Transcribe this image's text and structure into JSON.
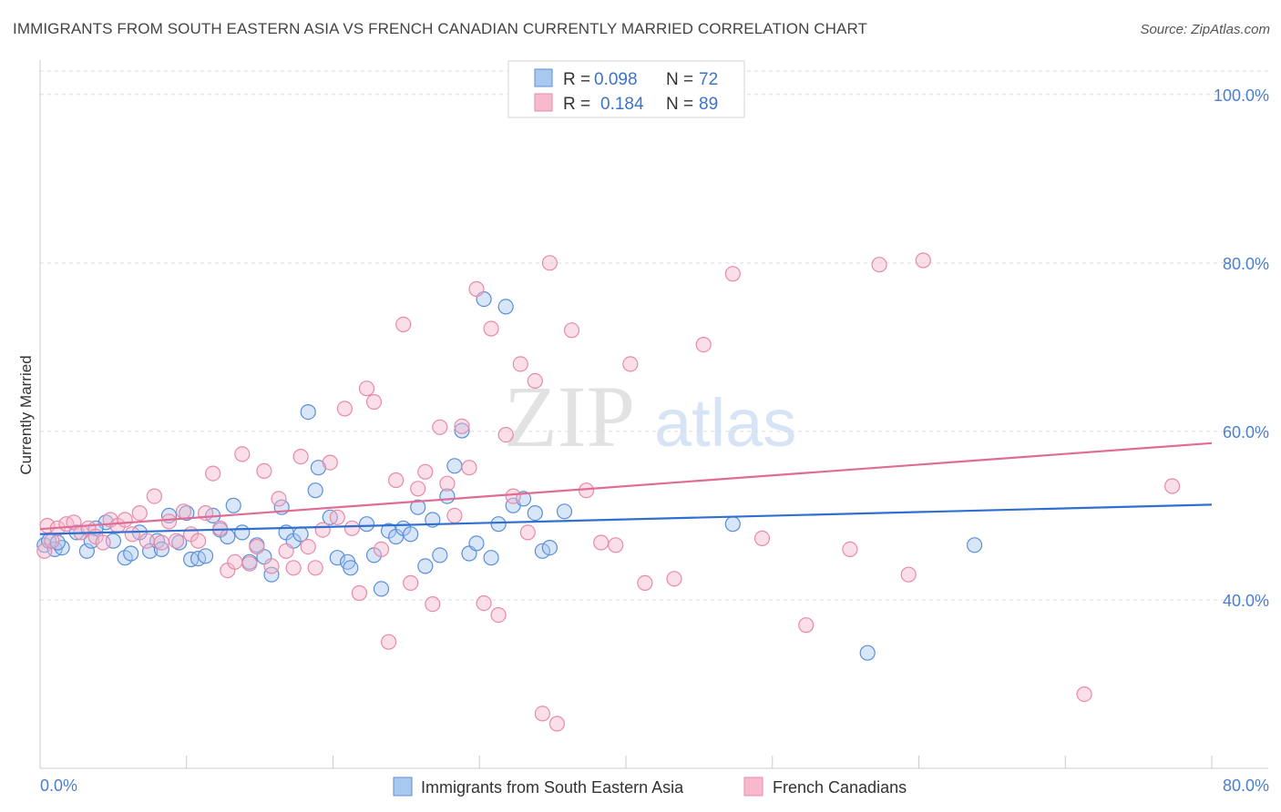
{
  "title": "IMMIGRANTS FROM SOUTH EASTERN ASIA VS FRENCH CANADIAN CURRENTLY MARRIED CORRELATION CHART",
  "source": "Source: ZipAtlas.com",
  "watermark": {
    "part1": "ZIP",
    "part2": "atlas"
  },
  "colors": {
    "blue_fill": "#a9c8f0",
    "blue_stroke": "#5b8fd8",
    "blue_line": "#2e6fd0",
    "pink_fill": "#f7b9cc",
    "pink_stroke": "#e88aa8",
    "pink_line": "#e06c96",
    "tick_text": "#4a7fd0",
    "grid": "#dddddd"
  },
  "chart_data": {
    "type": "scatter",
    "title": "IMMIGRANTS FROM SOUTH EASTERN ASIA VS FRENCH CANADIAN CURRENTLY MARRIED CORRELATION CHART",
    "xlabel": "",
    "ylabel": "Currently Married",
    "xlim": [
      0,
      80
    ],
    "ylim": [
      20,
      103
    ],
    "x_tick_labels": [
      "0.0%",
      "80.0%"
    ],
    "y_ticks": [
      40,
      60,
      80,
      100
    ],
    "y_tick_labels": [
      "40.0%",
      "60.0%",
      "80.0%",
      "100.0%"
    ],
    "grid": true,
    "legend_position": "top-center",
    "stats": [
      {
        "r_label": "R =",
        "r_value": "0.098",
        "n_label": "N =",
        "n_value": "72"
      },
      {
        "r_label": "R =",
        "r_value": "0.184",
        "n_label": "N =",
        "n_value": "89"
      }
    ],
    "series": [
      {
        "name": "Immigrants from South Eastern Asia",
        "color": "blue",
        "trend": [
          [
            0,
            47.8
          ],
          [
            80,
            51.3
          ]
        ],
        "points": [
          [
            0.3,
            46.5
          ],
          [
            0.6,
            47.0
          ],
          [
            1.0,
            46.0
          ],
          [
            1.5,
            46.2
          ],
          [
            2.5,
            48.0
          ],
          [
            3.2,
            45.8
          ],
          [
            3.5,
            47.0
          ],
          [
            4.5,
            49.2
          ],
          [
            5.0,
            47.0
          ],
          [
            5.8,
            45.0
          ],
          [
            6.2,
            45.5
          ],
          [
            6.8,
            48.0
          ],
          [
            7.5,
            45.8
          ],
          [
            8.0,
            47.0
          ],
          [
            8.3,
            46.0
          ],
          [
            8.8,
            50.0
          ],
          [
            9.5,
            46.8
          ],
          [
            10.0,
            50.3
          ],
          [
            10.3,
            44.8
          ],
          [
            10.8,
            44.9
          ],
          [
            11.3,
            45.2
          ],
          [
            11.8,
            50.0
          ],
          [
            12.3,
            48.3
          ],
          [
            12.8,
            47.5
          ],
          [
            13.2,
            51.2
          ],
          [
            13.8,
            48.0
          ],
          [
            14.3,
            44.5
          ],
          [
            14.8,
            46.5
          ],
          [
            15.3,
            45.1
          ],
          [
            15.8,
            43.0
          ],
          [
            16.5,
            51.0
          ],
          [
            16.8,
            48.0
          ],
          [
            17.3,
            47.0
          ],
          [
            17.8,
            47.8
          ],
          [
            18.3,
            62.3
          ],
          [
            18.8,
            53.0
          ],
          [
            19.0,
            55.7
          ],
          [
            19.8,
            49.8
          ],
          [
            20.3,
            45.0
          ],
          [
            21.0,
            44.5
          ],
          [
            21.2,
            43.8
          ],
          [
            22.3,
            49.0
          ],
          [
            22.8,
            45.3
          ],
          [
            23.3,
            41.3
          ],
          [
            23.8,
            48.2
          ],
          [
            24.3,
            47.5
          ],
          [
            24.8,
            48.5
          ],
          [
            25.3,
            47.8
          ],
          [
            25.8,
            51.0
          ],
          [
            26.3,
            44.0
          ],
          [
            26.8,
            49.5
          ],
          [
            27.3,
            45.3
          ],
          [
            27.8,
            52.3
          ],
          [
            28.3,
            55.9
          ],
          [
            28.8,
            60.1
          ],
          [
            29.3,
            45.5
          ],
          [
            29.8,
            46.7
          ],
          [
            30.3,
            75.7
          ],
          [
            30.8,
            45.0
          ],
          [
            31.3,
            49.0
          ],
          [
            31.8,
            74.8
          ],
          [
            32.3,
            51.2
          ],
          [
            33.0,
            52.0
          ],
          [
            33.8,
            50.3
          ],
          [
            34.3,
            45.8
          ],
          [
            34.8,
            46.2
          ],
          [
            35.8,
            50.5
          ],
          [
            47.3,
            49.0
          ],
          [
            56.5,
            33.7
          ],
          [
            63.8,
            46.5
          ],
          [
            1.2,
            46.8
          ],
          [
            3.8,
            48.5
          ]
        ]
      },
      {
        "name": "French Canadians",
        "color": "pink",
        "trend": [
          [
            0,
            48.4
          ],
          [
            80,
            58.6
          ]
        ],
        "points": [
          [
            0.3,
            45.8
          ],
          [
            0.5,
            48.8
          ],
          [
            0.8,
            47.0
          ],
          [
            1.2,
            48.5
          ],
          [
            1.8,
            49.0
          ],
          [
            2.3,
            49.2
          ],
          [
            2.8,
            48.0
          ],
          [
            3.3,
            48.5
          ],
          [
            3.8,
            47.5
          ],
          [
            4.3,
            46.8
          ],
          [
            4.8,
            49.5
          ],
          [
            5.3,
            48.8
          ],
          [
            5.8,
            49.5
          ],
          [
            6.3,
            47.8
          ],
          [
            6.8,
            50.3
          ],
          [
            7.3,
            47.0
          ],
          [
            7.8,
            52.3
          ],
          [
            8.3,
            46.8
          ],
          [
            8.8,
            49.3
          ],
          [
            9.3,
            47.0
          ],
          [
            9.8,
            50.5
          ],
          [
            10.3,
            47.8
          ],
          [
            10.8,
            47.0
          ],
          [
            11.3,
            50.3
          ],
          [
            11.8,
            55.0
          ],
          [
            12.3,
            48.5
          ],
          [
            12.8,
            43.5
          ],
          [
            13.3,
            44.5
          ],
          [
            13.8,
            57.3
          ],
          [
            14.3,
            44.3
          ],
          [
            14.8,
            46.3
          ],
          [
            15.3,
            55.3
          ],
          [
            15.8,
            44.0
          ],
          [
            16.3,
            52.0
          ],
          [
            16.8,
            45.8
          ],
          [
            17.3,
            43.8
          ],
          [
            17.8,
            57.0
          ],
          [
            18.3,
            46.3
          ],
          [
            18.8,
            43.8
          ],
          [
            19.3,
            48.3
          ],
          [
            19.8,
            56.3
          ],
          [
            20.3,
            49.8
          ],
          [
            20.8,
            62.7
          ],
          [
            21.3,
            48.5
          ],
          [
            21.8,
            40.8
          ],
          [
            22.3,
            65.1
          ],
          [
            22.8,
            63.5
          ],
          [
            23.3,
            46.0
          ],
          [
            23.8,
            35.0
          ],
          [
            24.3,
            54.2
          ],
          [
            24.8,
            72.7
          ],
          [
            25.3,
            42.0
          ],
          [
            25.8,
            53.2
          ],
          [
            26.3,
            55.2
          ],
          [
            26.8,
            39.5
          ],
          [
            27.3,
            60.5
          ],
          [
            27.8,
            53.8
          ],
          [
            28.3,
            50.0
          ],
          [
            28.8,
            60.6
          ],
          [
            29.3,
            55.7
          ],
          [
            29.8,
            76.9
          ],
          [
            30.3,
            39.6
          ],
          [
            30.8,
            72.2
          ],
          [
            31.3,
            38.2
          ],
          [
            31.8,
            59.6
          ],
          [
            32.3,
            52.3
          ],
          [
            32.8,
            68.0
          ],
          [
            33.3,
            48.0
          ],
          [
            33.8,
            66.0
          ],
          [
            34.3,
            26.5
          ],
          [
            34.8,
            80.0
          ],
          [
            35.3,
            25.3
          ],
          [
            36.3,
            72.0
          ],
          [
            37.3,
            53.0
          ],
          [
            38.3,
            46.8
          ],
          [
            39.3,
            46.5
          ],
          [
            40.3,
            68.0
          ],
          [
            41.3,
            42.0
          ],
          [
            43.3,
            42.5
          ],
          [
            45.3,
            70.3
          ],
          [
            47.3,
            78.7
          ],
          [
            49.3,
            47.3
          ],
          [
            52.3,
            37.0
          ],
          [
            55.3,
            46.0
          ],
          [
            57.3,
            79.8
          ],
          [
            59.3,
            43.0
          ],
          [
            60.3,
            80.3
          ],
          [
            71.3,
            28.8
          ],
          [
            77.3,
            53.5
          ]
        ]
      }
    ]
  }
}
